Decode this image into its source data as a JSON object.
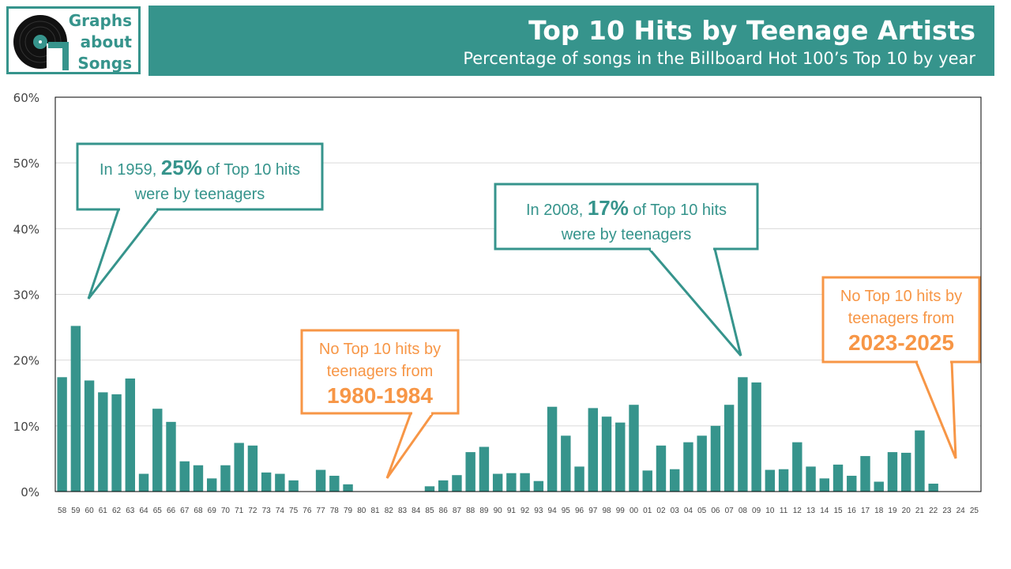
{
  "header": {
    "logo_lines": [
      "Graphs",
      "about",
      "Songs"
    ],
    "title": "Top 10 Hits by Teenage Artists",
    "subtitle": "Percentage of songs in the Billboard Hot 100’s Top 10 by year"
  },
  "colors": {
    "accent": "#36948c",
    "highlight": "#f79646",
    "grid": "#d9d9d9"
  },
  "chart_data": {
    "type": "bar",
    "title": "Top 10 Hits by Teenage Artists",
    "xlabel": "",
    "ylabel": "",
    "ylim": [
      0,
      60
    ],
    "yticks": [
      0,
      10,
      20,
      30,
      40,
      50,
      60
    ],
    "ytick_labels": [
      "0%",
      "10%",
      "20%",
      "30%",
      "40%",
      "50%",
      "60%"
    ],
    "grid": true,
    "categories": [
      "58",
      "59",
      "60",
      "61",
      "62",
      "63",
      "64",
      "65",
      "66",
      "67",
      "68",
      "69",
      "70",
      "71",
      "72",
      "73",
      "74",
      "75",
      "76",
      "77",
      "78",
      "79",
      "80",
      "81",
      "82",
      "83",
      "84",
      "85",
      "86",
      "87",
      "88",
      "89",
      "90",
      "91",
      "92",
      "93",
      "94",
      "95",
      "96",
      "97",
      "98",
      "99",
      "00",
      "01",
      "02",
      "03",
      "04",
      "05",
      "06",
      "07",
      "08",
      "09",
      "10",
      "11",
      "12",
      "13",
      "14",
      "15",
      "16",
      "17",
      "18",
      "19",
      "20",
      "21",
      "22",
      "23",
      "24",
      "25"
    ],
    "values": [
      17.4,
      25.2,
      16.9,
      15.1,
      14.8,
      17.2,
      2.7,
      12.6,
      10.6,
      4.6,
      4.0,
      2.0,
      4.0,
      7.4,
      7.0,
      2.9,
      2.7,
      1.7,
      0,
      3.3,
      2.4,
      1.1,
      0,
      0,
      0,
      0,
      0,
      0.8,
      1.7,
      2.5,
      6.0,
      6.8,
      2.7,
      2.8,
      2.8,
      1.6,
      12.9,
      8.5,
      3.8,
      12.7,
      11.4,
      10.5,
      13.2,
      3.2,
      7.0,
      3.4,
      7.5,
      8.5,
      10.0,
      13.2,
      17.4,
      16.6,
      3.3,
      3.4,
      7.5,
      3.8,
      2.0,
      4.1,
      2.4,
      5.4,
      1.5,
      6.0,
      5.9,
      9.3,
      1.2,
      0,
      0,
      0
    ],
    "annotations": [
      {
        "pre": "In 1959, ",
        "highlight": "25%",
        "post": " of Top 10 hits",
        "line2": "were by teenagers",
        "points_to": "59"
      },
      {
        "pre": "In 2008, ",
        "highlight": "17%",
        "post": " of Top 10 hits",
        "line2": "were by teenagers",
        "points_to": "08"
      },
      {
        "line1": "No Top 10 hits by",
        "line2": "teenagers from",
        "highlight": "1980-1984",
        "points_to": "82"
      },
      {
        "line1": "No Top 10 hits by",
        "line2": "teenagers from",
        "highlight": "2023-2025",
        "points_to": "24"
      }
    ]
  }
}
